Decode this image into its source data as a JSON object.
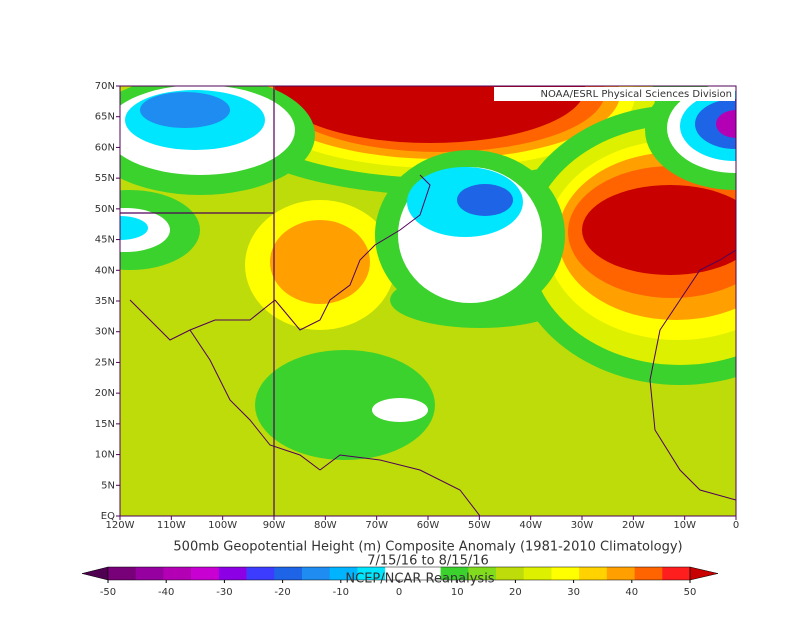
{
  "map": {
    "credit": "NOAA/ESRL Physical Sciences Division",
    "title": "500mb Geopotential Height (m) Composite Anomaly (1981-2010 Climatology)",
    "subtitle": "7/15/16  to 8/15/16",
    "source": "NCEP/NCAR Reanalysis",
    "xlim": [
      -120,
      0
    ],
    "ylim": [
      0,
      70
    ],
    "xticks": [
      {
        "value": -120,
        "label": "120W"
      },
      {
        "value": -110,
        "label": "110W"
      },
      {
        "value": -100,
        "label": "100W"
      },
      {
        "value": -90,
        "label": "90W"
      },
      {
        "value": -80,
        "label": "80W"
      },
      {
        "value": -70,
        "label": "70W"
      },
      {
        "value": -60,
        "label": "60W"
      },
      {
        "value": -50,
        "label": "50W"
      },
      {
        "value": -40,
        "label": "40W"
      },
      {
        "value": -30,
        "label": "30W"
      },
      {
        "value": -20,
        "label": "20W"
      },
      {
        "value": -10,
        "label": "10W"
      },
      0
    ],
    "yticks": [
      {
        "value": 0,
        "label": "EQ"
      },
      {
        "value": 5,
        "label": "5N"
      },
      {
        "value": 10,
        "label": "10N"
      },
      {
        "value": 15,
        "label": "15N"
      },
      {
        "value": 20,
        "label": "20N"
      },
      {
        "value": 25,
        "label": "25N"
      },
      {
        "value": 30,
        "label": "30N"
      },
      {
        "value": 35,
        "label": "35N"
      },
      {
        "value": 40,
        "label": "40N"
      },
      {
        "value": 45,
        "label": "45N"
      },
      {
        "value": 50,
        "label": "50N"
      },
      {
        "value": 55,
        "label": "55N"
      },
      {
        "value": 60,
        "label": "60N"
      },
      {
        "value": 65,
        "label": "65N"
      },
      {
        "value": 70,
        "label": "70N"
      }
    ],
    "colorbar": {
      "ticks": [
        -50,
        -40,
        -30,
        -20,
        -10,
        0,
        10,
        20,
        30,
        40,
        50
      ],
      "colors": [
        "#500050",
        "#780078",
        "#9600a0",
        "#b400b4",
        "#c800d2",
        "#8c00e6",
        "#3c3cff",
        "#1e64e6",
        "#1e8cf0",
        "#00b4ff",
        "#00e6ff",
        "#ffffff",
        "#ffffff",
        "#3cd22d",
        "#82dc1e",
        "#bedc0a",
        "#dcf000",
        "#ffff00",
        "#ffd200",
        "#ffa000",
        "#ff6400",
        "#ff1e1e",
        "#c80000"
      ]
    }
  }
}
